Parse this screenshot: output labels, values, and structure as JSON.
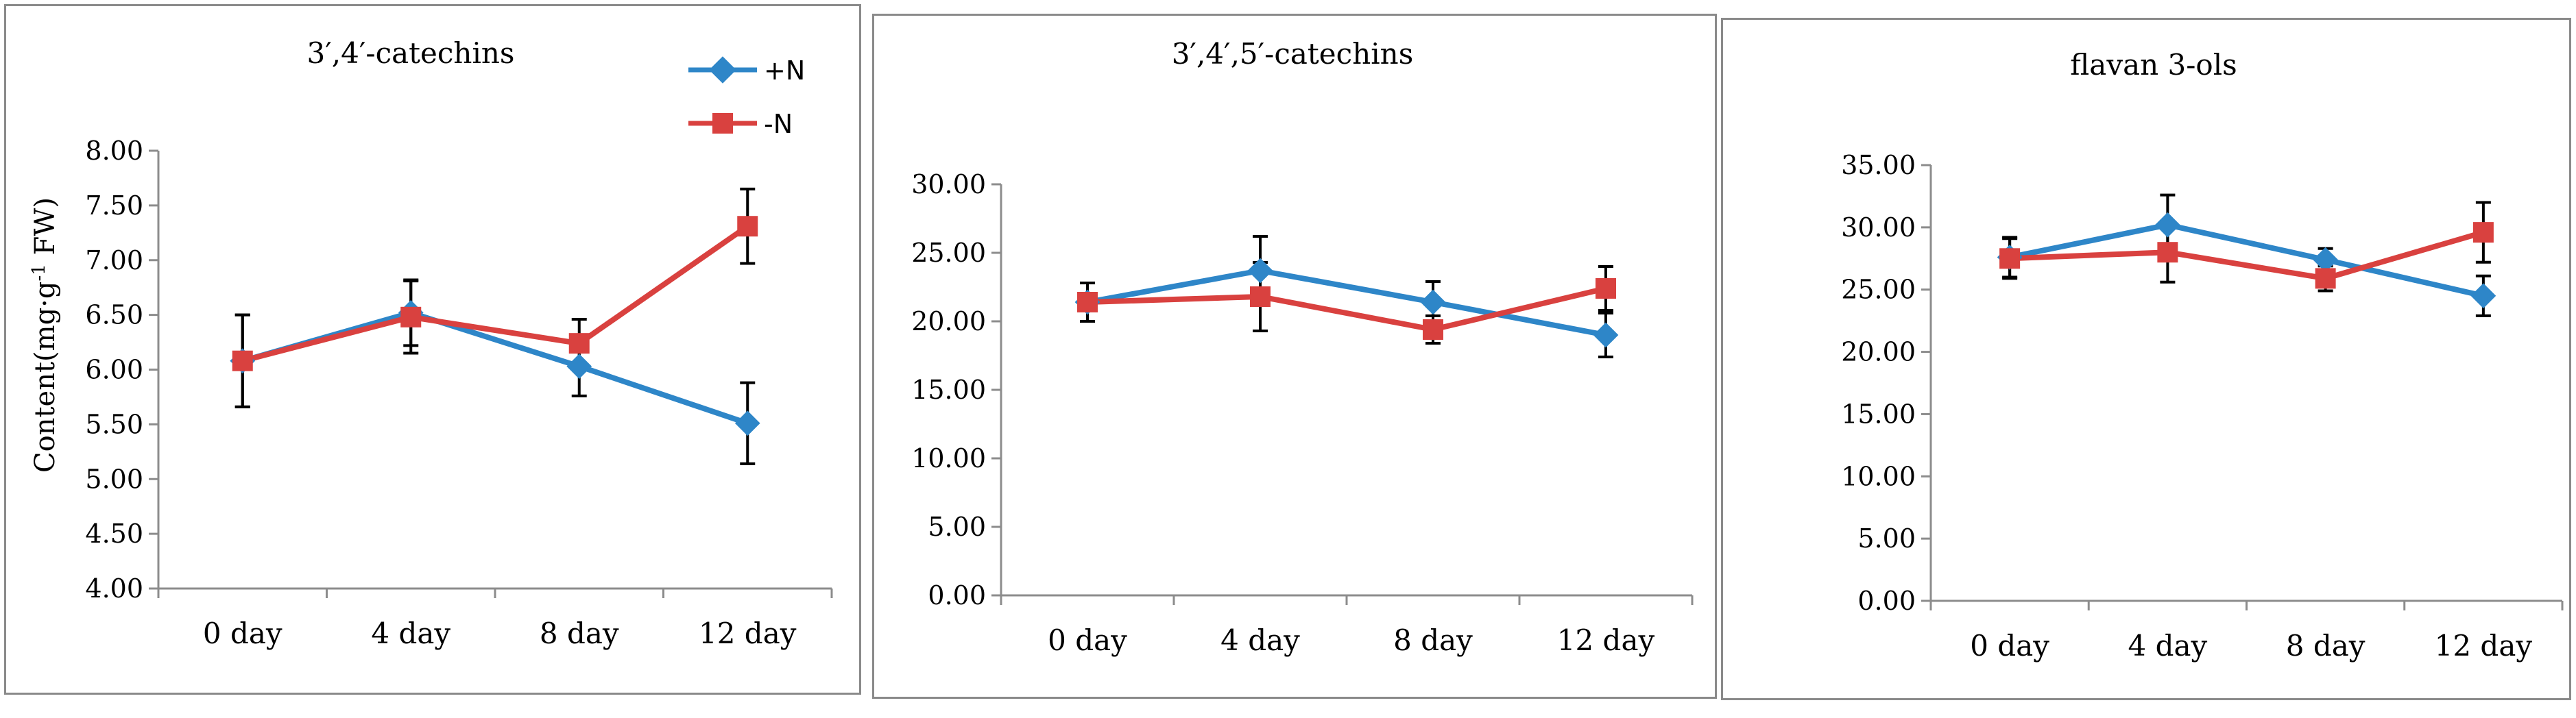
{
  "colors": {
    "plus_n": "#2e86c8",
    "minus_n": "#d9413f",
    "axis": "#8c8c8c",
    "error_bar": "#000000"
  },
  "legend": {
    "items": [
      {
        "label": "+N",
        "marker": "diamond",
        "color": "#2e86c8"
      },
      {
        "label": "-N",
        "marker": "square",
        "color": "#d9413f"
      }
    ]
  },
  "chart_data": [
    {
      "type": "line",
      "title": "3′,4′-catechins",
      "ylabel": "Content(mg·g⁻¹ FW)",
      "ylabel_parts": {
        "base": "Content(mg·g",
        "sup": "-1",
        "unit": " FW)"
      },
      "categories": [
        "0 day",
        "4 day",
        "8 day",
        "12 day"
      ],
      "ylim": [
        4.0,
        8.0
      ],
      "ytick_step": 0.5,
      "yticks": [
        "4.00",
        "4.50",
        "5.00",
        "5.50",
        "6.00",
        "6.50",
        "7.00",
        "7.50",
        "8.00"
      ],
      "grid": false,
      "legend_position": "top-right",
      "series": [
        {
          "name": "+N",
          "values": [
            6.08,
            6.52,
            6.03,
            5.51
          ],
          "errors": [
            0.42,
            0.3,
            0.27,
            0.37
          ]
        },
        {
          "name": "-N",
          "values": [
            6.08,
            6.48,
            6.24,
            7.31
          ],
          "errors": [
            0.42,
            0.33,
            0.22,
            0.34
          ]
        }
      ]
    },
    {
      "type": "line",
      "title": "3′,4′,5′-catechins",
      "categories": [
        "0 day",
        "4 day",
        "8 day",
        "12 day"
      ],
      "ylim": [
        0,
        30
      ],
      "ytick_step": 5,
      "yticks": [
        "0.00",
        "5.00",
        "10.00",
        "15.00",
        "20.00",
        "25.00",
        "30.00"
      ],
      "grid": false,
      "series": [
        {
          "name": "+N",
          "values": [
            21.4,
            23.7,
            21.4,
            19.0
          ],
          "errors": [
            1.4,
            2.5,
            1.5,
            1.6
          ]
        },
        {
          "name": "-N",
          "values": [
            21.4,
            21.8,
            19.4,
            22.4
          ],
          "errors": [
            1.4,
            2.5,
            1.0,
            1.6
          ]
        }
      ]
    },
    {
      "type": "line",
      "title": "flavan 3-ols",
      "categories": [
        "0 day",
        "4 day",
        "8 day",
        "12 day"
      ],
      "ylim": [
        0,
        35
      ],
      "ytick_step": 5,
      "yticks": [
        "0.00",
        "5.00",
        "10.00",
        "15.00",
        "20.00",
        "25.00",
        "30.00",
        "35.00"
      ],
      "grid": false,
      "series": [
        {
          "name": "+N",
          "values": [
            27.6,
            30.2,
            27.4,
            24.5
          ],
          "errors": [
            1.6,
            2.4,
            0.9,
            1.6
          ]
        },
        {
          "name": "-N",
          "values": [
            27.5,
            28.0,
            25.9,
            29.6
          ],
          "errors": [
            1.6,
            2.4,
            1.0,
            2.4
          ]
        }
      ]
    }
  ]
}
